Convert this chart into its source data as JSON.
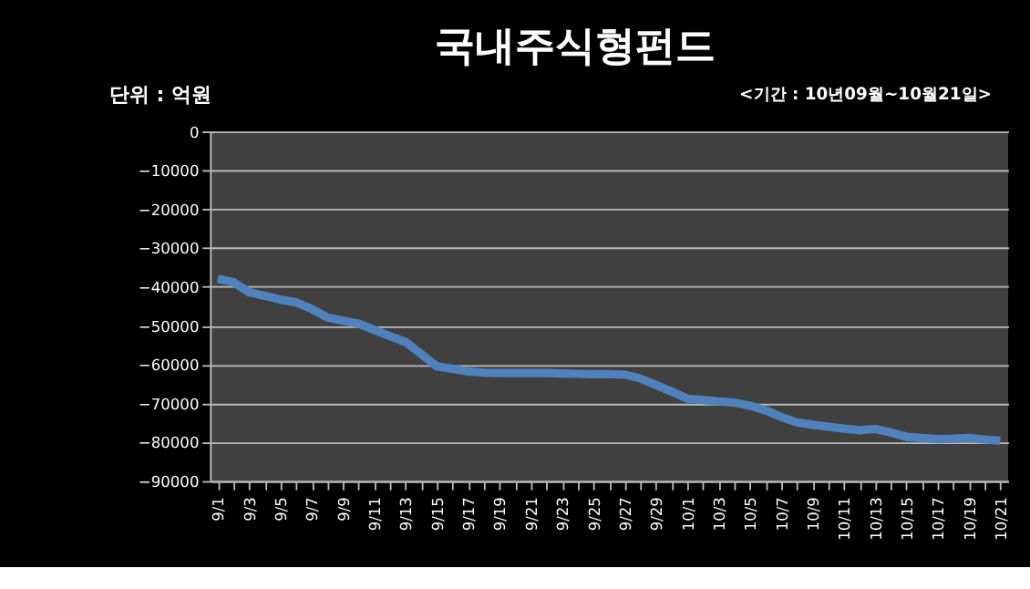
{
  "chart_data": {
    "type": "line",
    "title": "국내주식형펀드",
    "annotations": [
      "단위 : 억원",
      "<기간 : 10년09월~10월21일>"
    ],
    "categories": [
      "9/1",
      null,
      "9/3",
      null,
      "9/5",
      null,
      "9/7",
      null,
      "9/9",
      null,
      "9/11",
      null,
      "9/13",
      null,
      "9/15",
      null,
      "9/17",
      null,
      "9/19",
      null,
      "9/21",
      null,
      "9/23",
      null,
      "9/25",
      null,
      "9/27",
      null,
      "9/29",
      null,
      "10/1",
      null,
      "10/3",
      null,
      "10/5",
      null,
      "10/7",
      null,
      "10/9",
      null,
      "10/11",
      null,
      "10/13",
      null,
      "10/15",
      null,
      "10/17",
      null,
      "10/19",
      null,
      "10/21"
    ],
    "series": [
      {
        "color": "#4f81bd",
        "values": [
          -37900,
          -38800,
          -41400,
          -42300,
          -43300,
          -44000,
          -45700,
          -47900,
          -48700,
          -49500,
          -51100,
          -52700,
          -54200,
          -57300,
          -60500,
          -61100,
          -61800,
          -62100,
          -62200,
          -62200,
          -62200,
          -62200,
          -62300,
          -62400,
          -62500,
          -62500,
          -62600,
          -63600,
          -65300,
          -67000,
          -68800,
          -69100,
          -69500,
          -69800,
          -70600,
          -71800,
          -73500,
          -74900,
          -75500,
          -76000,
          -76500,
          -76900,
          -76600,
          -77500,
          -78600,
          -78900,
          -79200,
          -79100,
          -78900,
          -79300,
          -79600
        ]
      }
    ],
    "ylim": [
      -90000,
      0
    ],
    "yticks": [
      0,
      -10000,
      -20000,
      -30000,
      -40000,
      -50000,
      -60000,
      -70000,
      -80000,
      -90000
    ],
    "grid": "y",
    "line_style": "solid",
    "marker": "none"
  }
}
